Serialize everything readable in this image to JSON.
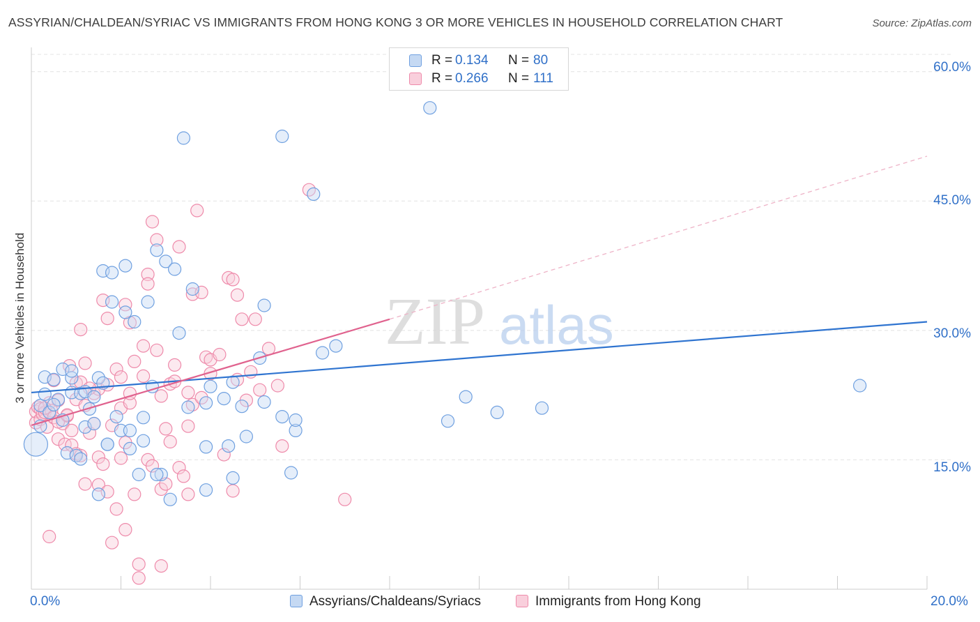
{
  "title": "ASSYRIAN/CHALDEAN/SYRIAC VS IMMIGRANTS FROM HONG KONG 3 OR MORE VEHICLES IN HOUSEHOLD CORRELATION CHART",
  "source": "Source: ZipAtlas.com",
  "watermark": {
    "zip": "ZIP",
    "atlas": "atlas"
  },
  "legend": {
    "blue": {
      "r_label": "R =",
      "r_value": "0.134",
      "n_label": "N =",
      "n_value": "80"
    },
    "pink": {
      "r_label": "R =",
      "r_value": "0.266",
      "n_label": "N =",
      "n_value": "111"
    }
  },
  "series_names": {
    "blue": "Assyrians/Chaldeans/Syriacs",
    "pink": "Immigrants from Hong Kong"
  },
  "axis_labels": {
    "x_min": "0.0%",
    "x_max": "20.0%",
    "y_ticks": [
      "60.0%",
      "45.0%",
      "30.0%",
      "15.0%"
    ]
  },
  "colors": {
    "blue": "#6fa0e0",
    "blue_fill": "#c5d9f3",
    "blue_line": "#2f74d0",
    "pink": "#ee8aaa",
    "pink_fill": "#f9cfdc",
    "pink_line": "#e0628e",
    "tick_text": "#3070c8"
  },
  "chart_data": {
    "type": "scatter",
    "title": "ASSYRIAN/CHALDEAN/SYRIAC VS IMMIGRANTS FROM HONG KONG 3 OR MORE VEHICLES IN HOUSEHOLD CORRELATION CHART",
    "xlabel": "",
    "ylabel": "3 or more Vehicles in Household",
    "xlim": [
      0,
      20
    ],
    "ylim": [
      0,
      62
    ],
    "yticks": [
      15,
      30,
      45,
      60
    ],
    "series": [
      {
        "name": "Assyrians/Chaldeans/Syriacs",
        "color": "#6fa0e0",
        "trend": {
          "x": [
            0,
            20
          ],
          "y": [
            22.8,
            31.0
          ],
          "dashed_to": null
        },
        "points": [
          [
            0.1,
            16.8
          ],
          [
            0.2,
            21.3
          ],
          [
            0.2,
            18.9
          ],
          [
            0.3,
            22.6
          ],
          [
            0.3,
            24.6
          ],
          [
            0.4,
            20.5
          ],
          [
            0.5,
            24.3
          ],
          [
            0.6,
            22.0
          ],
          [
            0.7,
            25.5
          ],
          [
            0.7,
            19.6
          ],
          [
            0.8,
            15.8
          ],
          [
            0.9,
            22.8
          ],
          [
            0.9,
            24.5
          ],
          [
            1.0,
            15.5
          ],
          [
            1.1,
            22.7
          ],
          [
            1.1,
            15.1
          ],
          [
            1.2,
            18.8
          ],
          [
            1.2,
            22.9
          ],
          [
            1.3,
            20.9
          ],
          [
            1.4,
            22.3
          ],
          [
            1.5,
            24.5
          ],
          [
            1.5,
            11.0
          ],
          [
            1.6,
            23.9
          ],
          [
            1.6,
            36.9
          ],
          [
            1.7,
            16.8
          ],
          [
            1.8,
            36.7
          ],
          [
            1.8,
            33.3
          ],
          [
            1.9,
            20.0
          ],
          [
            2.0,
            18.4
          ],
          [
            2.1,
            32.1
          ],
          [
            2.1,
            37.5
          ],
          [
            2.2,
            18.4
          ],
          [
            2.2,
            16.3
          ],
          [
            2.3,
            31.0
          ],
          [
            2.4,
            13.3
          ],
          [
            2.5,
            17.2
          ],
          [
            2.5,
            19.9
          ],
          [
            2.6,
            33.3
          ],
          [
            2.7,
            23.5
          ],
          [
            2.8,
            39.3
          ],
          [
            2.9,
            13.3
          ],
          [
            3.0,
            38.0
          ],
          [
            3.1,
            10.4
          ],
          [
            3.2,
            37.1
          ],
          [
            3.3,
            29.7
          ],
          [
            3.4,
            52.3
          ],
          [
            3.5,
            21.1
          ],
          [
            3.6,
            34.8
          ],
          [
            3.9,
            11.5
          ],
          [
            3.9,
            21.6
          ],
          [
            4.0,
            23.5
          ],
          [
            4.3,
            22.1
          ],
          [
            4.4,
            16.6
          ],
          [
            4.5,
            24.0
          ],
          [
            4.5,
            12.9
          ],
          [
            4.7,
            21.2
          ],
          [
            4.8,
            17.7
          ],
          [
            5.1,
            26.8
          ],
          [
            5.2,
            21.7
          ],
          [
            5.2,
            32.9
          ],
          [
            5.6,
            52.5
          ],
          [
            5.6,
            20.0
          ],
          [
            5.8,
            13.5
          ],
          [
            5.9,
            18.4
          ],
          [
            5.9,
            19.6
          ],
          [
            6.3,
            45.8
          ],
          [
            6.5,
            27.4
          ],
          [
            6.8,
            28.2
          ],
          [
            8.9,
            55.8
          ],
          [
            9.3,
            19.5
          ],
          [
            9.7,
            22.3
          ],
          [
            10.4,
            20.5
          ],
          [
            11.4,
            21.0
          ],
          [
            18.5,
            23.6
          ],
          [
            0.5,
            21.4
          ],
          [
            0.9,
            25.3
          ],
          [
            1.4,
            19.2
          ],
          [
            1.7,
            16.8
          ],
          [
            2.8,
            13.3
          ],
          [
            3.9,
            16.5
          ]
        ]
      },
      {
        "name": "Immigrants from Hong Kong",
        "color": "#ee8aaa",
        "trend": {
          "x": [
            0,
            8
          ],
          "y": [
            19.0,
            31.3
          ],
          "dashed_x": [
            8,
            20
          ],
          "dashed_y": [
            31.3,
            50.2
          ]
        },
        "points": [
          [
            0.1,
            19.3
          ],
          [
            0.1,
            20.6
          ],
          [
            0.15,
            21.1
          ],
          [
            0.2,
            19.7
          ],
          [
            0.2,
            20.9
          ],
          [
            0.25,
            20.3
          ],
          [
            0.3,
            20.5
          ],
          [
            0.35,
            18.8
          ],
          [
            0.4,
            6.1
          ],
          [
            0.4,
            21.6
          ],
          [
            0.45,
            20.7
          ],
          [
            0.5,
            19.9
          ],
          [
            0.5,
            24.2
          ],
          [
            0.6,
            17.4
          ],
          [
            0.6,
            21.9
          ],
          [
            0.7,
            19.2
          ],
          [
            0.75,
            16.8
          ],
          [
            0.8,
            20.1
          ],
          [
            0.85,
            25.9
          ],
          [
            0.9,
            16.7
          ],
          [
            0.9,
            18.4
          ],
          [
            1.0,
            15.7
          ],
          [
            1.0,
            23.9
          ],
          [
            1.0,
            22.0
          ],
          [
            1.1,
            30.1
          ],
          [
            1.1,
            15.5
          ],
          [
            1.2,
            21.3
          ],
          [
            1.2,
            12.2
          ],
          [
            1.2,
            26.2
          ],
          [
            1.3,
            18.1
          ],
          [
            1.4,
            22.7
          ],
          [
            1.4,
            19.2
          ],
          [
            1.5,
            15.3
          ],
          [
            1.5,
            23.2
          ],
          [
            1.5,
            12.1
          ],
          [
            1.6,
            33.5
          ],
          [
            1.6,
            14.5
          ],
          [
            1.7,
            31.4
          ],
          [
            1.7,
            11.3
          ],
          [
            1.8,
            5.4
          ],
          [
            1.8,
            19.0
          ],
          [
            1.9,
            25.5
          ],
          [
            1.9,
            9.3
          ],
          [
            2.0,
            24.6
          ],
          [
            2.0,
            21.0
          ],
          [
            2.0,
            15.2
          ],
          [
            2.1,
            33.0
          ],
          [
            2.1,
            6.9
          ],
          [
            2.2,
            30.9
          ],
          [
            2.2,
            21.6
          ],
          [
            2.2,
            22.7
          ],
          [
            2.3,
            11.0
          ],
          [
            2.4,
            2.9
          ],
          [
            2.4,
            1.3
          ],
          [
            2.5,
            24.7
          ],
          [
            2.5,
            28.2
          ],
          [
            2.6,
            36.5
          ],
          [
            2.6,
            35.4
          ],
          [
            2.6,
            15.0
          ],
          [
            2.7,
            42.6
          ],
          [
            2.7,
            14.3
          ],
          [
            2.8,
            40.5
          ],
          [
            2.8,
            27.7
          ],
          [
            2.9,
            2.7
          ],
          [
            2.9,
            11.6
          ],
          [
            3.0,
            18.6
          ],
          [
            3.0,
            12.2
          ],
          [
            3.1,
            23.8
          ],
          [
            3.1,
            17.1
          ],
          [
            3.2,
            24.1
          ],
          [
            3.2,
            26.0
          ],
          [
            3.3,
            39.7
          ],
          [
            3.3,
            14.1
          ],
          [
            3.5,
            11.0
          ],
          [
            3.5,
            18.9
          ],
          [
            3.5,
            22.8
          ],
          [
            3.6,
            34.2
          ],
          [
            3.6,
            21.4
          ],
          [
            3.7,
            43.9
          ],
          [
            3.8,
            34.4
          ],
          [
            3.9,
            26.9
          ],
          [
            4.0,
            25.0
          ],
          [
            4.0,
            26.6
          ],
          [
            4.3,
            15.6
          ],
          [
            4.4,
            36.1
          ],
          [
            4.5,
            35.9
          ],
          [
            4.5,
            11.4
          ],
          [
            4.6,
            34.1
          ],
          [
            4.7,
            31.3
          ],
          [
            4.8,
            21.9
          ],
          [
            4.9,
            25.2
          ],
          [
            5.0,
            31.3
          ],
          [
            5.3,
            27.9
          ],
          [
            5.6,
            16.6
          ],
          [
            6.2,
            46.3
          ],
          [
            7.0,
            10.4
          ],
          [
            0.3,
            21.0
          ],
          [
            0.6,
            19.4
          ],
          [
            0.8,
            20.2
          ],
          [
            1.1,
            24.0
          ],
          [
            1.3,
            23.3
          ],
          [
            1.7,
            23.7
          ],
          [
            2.1,
            17.0
          ],
          [
            2.3,
            26.4
          ],
          [
            2.9,
            22.4
          ],
          [
            3.4,
            13.1
          ],
          [
            3.8,
            22.2
          ],
          [
            4.2,
            27.2
          ],
          [
            4.6,
            24.3
          ],
          [
            5.1,
            23.1
          ],
          [
            5.5,
            23.6
          ]
        ]
      }
    ]
  }
}
